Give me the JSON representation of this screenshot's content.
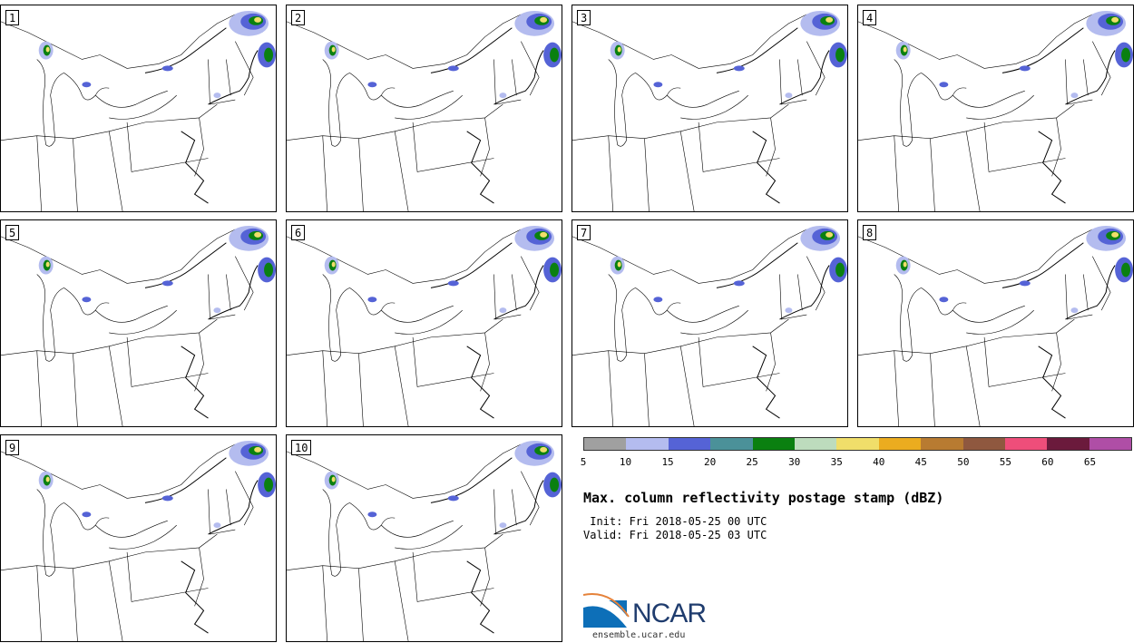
{
  "panels": [
    {
      "label": "1"
    },
    {
      "label": "2"
    },
    {
      "label": "3"
    },
    {
      "label": "4"
    },
    {
      "label": "5"
    },
    {
      "label": "6"
    },
    {
      "label": "7"
    },
    {
      "label": "8"
    },
    {
      "label": "9"
    },
    {
      "label": "10"
    }
  ],
  "legend": {
    "colors": [
      "#a0a0a0",
      "#b4bcef",
      "#5563d6",
      "#4b9199",
      "#0a8010",
      "#bddcbd",
      "#f0de6a",
      "#ebac1f",
      "#b87b31",
      "#8f583f",
      "#ee4e7a",
      "#6b1a3c",
      "#af4ea6"
    ],
    "ticks": [
      "5",
      "10",
      "15",
      "20",
      "25",
      "30",
      "35",
      "40",
      "45",
      "50",
      "55",
      "60",
      "65"
    ]
  },
  "title": "Max. column reflectivity postage stamp (dBZ)",
  "init": " Init: Fri 2018-05-25 00 UTC",
  "valid": "Valid: Fri 2018-05-25 03 UTC",
  "logo": {
    "name": "NCAR",
    "url": "ensemble.ucar.edu"
  }
}
